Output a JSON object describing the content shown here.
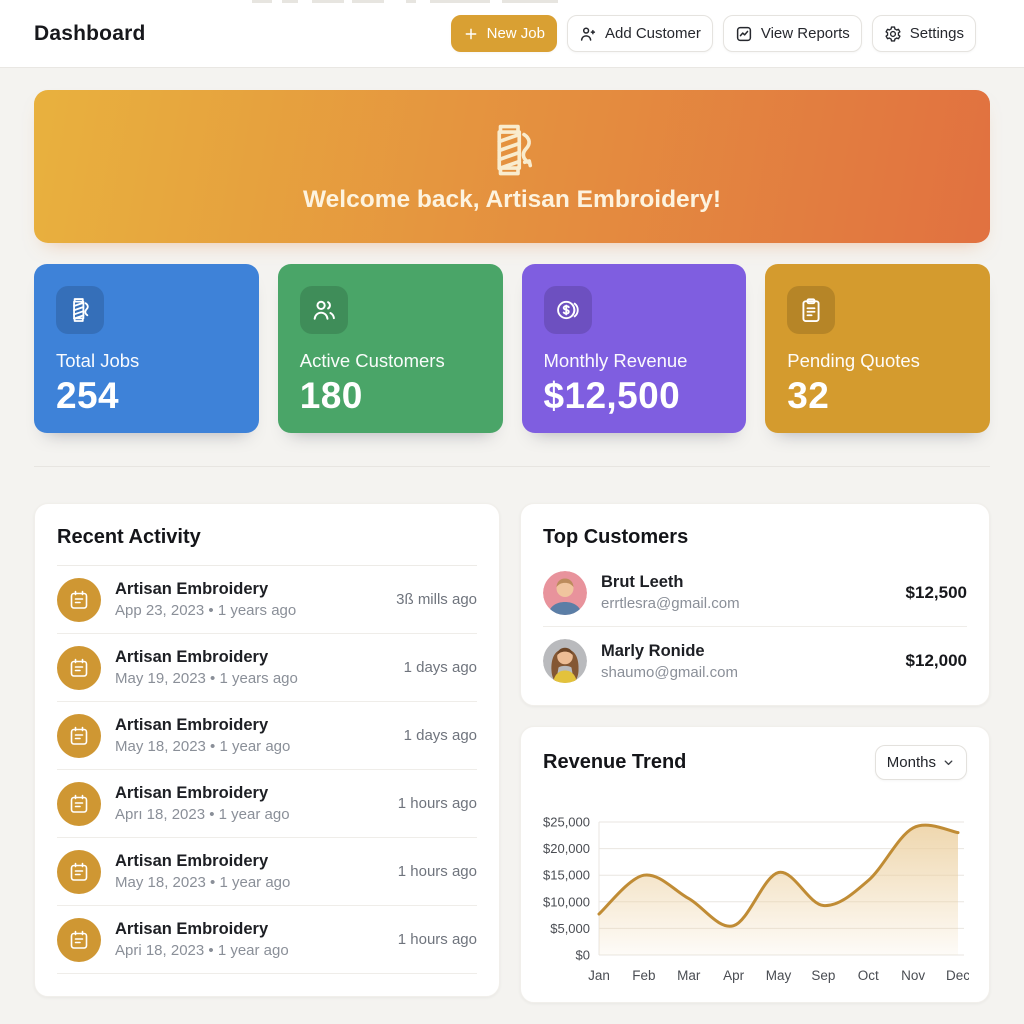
{
  "header": {
    "title": "Dashboard",
    "actions": [
      {
        "label": "New Job",
        "icon": "plus",
        "primary": true,
        "color": "#d9a033"
      },
      {
        "label": "Add Customer",
        "icon": "person-add"
      },
      {
        "label": "View Reports",
        "icon": "chart-line"
      },
      {
        "label": "Settings",
        "icon": "gear"
      }
    ]
  },
  "banner": {
    "message": "Welcome back, Artisan Embroidery!",
    "icon": "thread-spool",
    "gradient": [
      "#e8b13e",
      "#e17140"
    ]
  },
  "stats": [
    {
      "label": "Total Jobs",
      "value": "254",
      "color": "#3e82d8",
      "icon": "thread-spool"
    },
    {
      "label": "Active Customers",
      "value": "180",
      "color": "#4aa568",
      "icon": "users"
    },
    {
      "label": "Monthly Revenue",
      "value": "$12,500",
      "color": "#7f5ee0",
      "icon": "coins"
    },
    {
      "label": "Pending Quotes",
      "value": "32",
      "color": "#d49b2e",
      "icon": "clipboard"
    }
  ],
  "recent_activity": {
    "title": "Recent Activity",
    "items": [
      {
        "title": "Artisan Embroidery",
        "subtitle": "App 23, 2023 • 1 years ago",
        "time": "3ß mills ago"
      },
      {
        "title": "Artisan Embroidery",
        "subtitle": "May 19, 2023 • 1 years ago",
        "time": "1 days ago"
      },
      {
        "title": "Artisan Embroidery",
        "subtitle": "May 18, 2023 • 1 year ago",
        "time": "1 days ago"
      },
      {
        "title": "Artisan Embroidery",
        "subtitle": "Aprı 18, 2023 • 1 year ago",
        "time": "1 hours ago"
      },
      {
        "title": "Artisan Embroidery",
        "subtitle": "May 18, 2023 • 1 year ago",
        "time": "1 hours ago"
      },
      {
        "title": "Artisan Embroidery",
        "subtitle": "Apri 18, 2023 • 1 year ago",
        "time": "1 hours ago"
      }
    ]
  },
  "top_customers": {
    "title": "Top Customers",
    "customers": [
      {
        "name": "Brut Leeth",
        "email": "errtlesra@gmail.com",
        "amount": "$12,500"
      },
      {
        "name": "Marly Ronide",
        "email": "shaumo@gmail.com",
        "amount": "$12,000"
      }
    ]
  },
  "revenue_trend": {
    "title": "Revenue Trend",
    "period_label": "Months",
    "chart_data": {
      "type": "area",
      "x": [
        "Jan",
        "Feb",
        "Mar",
        "Apr",
        "May",
        "Sep",
        "Oct",
        "Nov",
        "Dec"
      ],
      "values": [
        7700,
        15000,
        10600,
        5500,
        15500,
        9300,
        14000,
        23900,
        23000
      ],
      "y_ticks": [
        "$0",
        "$5,000",
        "$10,000",
        "$15,000",
        "$20,000",
        "$25,000"
      ],
      "ylim": [
        0,
        25000
      ],
      "line_color": "#c08c35",
      "fill_top": "#ecd0a0",
      "grid": true,
      "legend": "none"
    }
  }
}
